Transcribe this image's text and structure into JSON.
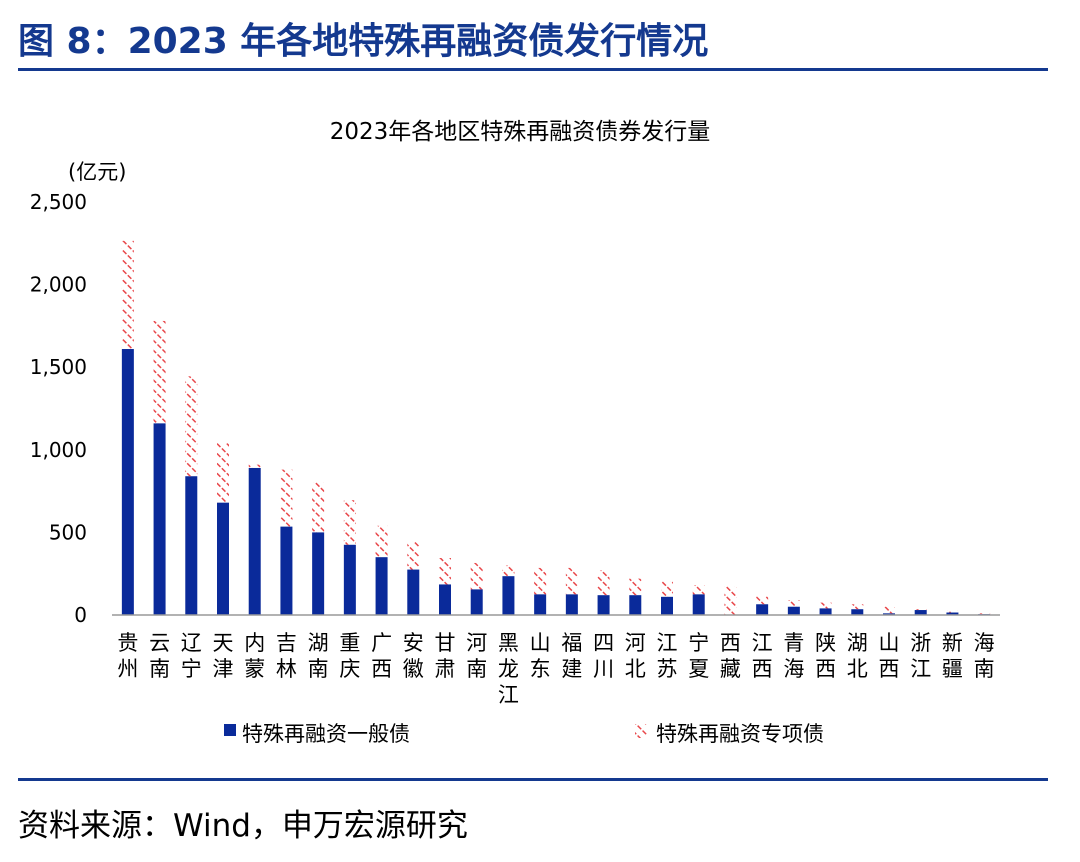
{
  "figure_title": "图 8：2023 年各地特殊再融资债发行情况",
  "source_text": "资料来源：Wind，申万宏源研究",
  "colors": {
    "accent": "#14398f",
    "series_general": "#0a2a9a",
    "series_special": "#e8474a"
  },
  "chart_data": {
    "type": "bar",
    "stacked": true,
    "title": "2023年各地区特殊再融资债券发行量",
    "ylabel": "(亿元)",
    "xlabel": "",
    "ylim": [
      0,
      2500
    ],
    "yticks": [
      0,
      500,
      1000,
      1500,
      2000,
      2500
    ],
    "ytick_labels": [
      "0",
      "500",
      "1,000",
      "1,500",
      "2,000",
      "2,500"
    ],
    "grid": false,
    "legend_position": "bottom",
    "categories": [
      "贵州",
      "云南",
      "辽宁",
      "天津",
      "内蒙",
      "吉林",
      "湖南",
      "重庆",
      "广西",
      "安徽",
      "甘肃",
      "河南",
      "黑龙江",
      "山东",
      "福建",
      "四川",
      "河北",
      "江苏",
      "宁夏",
      "西藏",
      "江西",
      "青海",
      "陕西",
      "湖北",
      "山西",
      "浙江",
      "新疆",
      "海南"
    ],
    "series": [
      {
        "name": "特殊再融资一般债",
        "style": "solid",
        "values": [
          1610,
          1160,
          840,
          680,
          890,
          535,
          500,
          425,
          350,
          275,
          185,
          155,
          235,
          125,
          125,
          120,
          120,
          110,
          125,
          0,
          65,
          50,
          40,
          35,
          10,
          30,
          15,
          5
        ]
      },
      {
        "name": "特殊再融资专项债",
        "style": "hatched",
        "values": [
          655,
          620,
          605,
          360,
          20,
          345,
          305,
          270,
          190,
          170,
          160,
          160,
          65,
          160,
          160,
          150,
          100,
          95,
          55,
          175,
          50,
          40,
          35,
          30,
          40,
          5,
          10,
          5
        ]
      }
    ]
  }
}
